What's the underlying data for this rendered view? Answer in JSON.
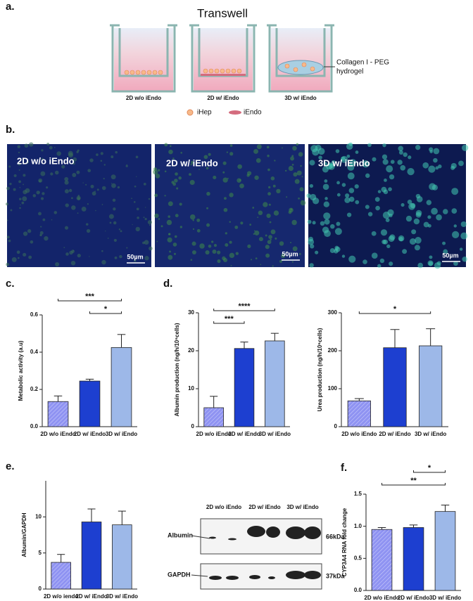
{
  "figure": {
    "panel_labels": [
      "a.",
      "b.",
      "c.",
      "d.",
      "e.",
      "f."
    ],
    "diagram": {
      "title": "Transwell",
      "wells": [
        "2D w/o iEndo",
        "2D w/ iEndo",
        "3D w/ iEndo"
      ],
      "hydrogel": [
        "Collagen I - PEG",
        "hydrogel"
      ],
      "legend": [
        "iHep",
        "iEndo"
      ]
    },
    "micrographs": [
      {
        "label": "2D w/o iEndo",
        "scale": "50µm"
      },
      {
        "label": "2D w/ iEndo",
        "scale": "50µm"
      },
      {
        "label": "3D w/ iEndo",
        "scale": "50µm"
      }
    ],
    "blot": {
      "columns": [
        "2D w/o iEndo",
        "2D w/ iEndo",
        "3D w/ iEndo"
      ],
      "rows": [
        "Albumin",
        "GAPDH"
      ],
      "sizes": [
        "66kDa",
        "37kDa"
      ]
    }
  },
  "chart_data": [
    {
      "type": "bar",
      "ylabel": "Metabolic activity (a.u)",
      "categories": [
        "2D w/o iEndo",
        "2D w/ iEndo",
        "3D w/ iEndo"
      ],
      "values": [
        0.135,
        0.245,
        0.425
      ],
      "errors": [
        0.03,
        0.01,
        0.07
      ],
      "colors": [
        "#8f93f2",
        "#1d3fd0",
        "#9db8e8"
      ],
      "hatched": [
        true,
        false,
        false
      ],
      "ylim": [
        0,
        0.6
      ],
      "yticks": [
        {
          "value": 0,
          "label": "0.0"
        },
        0.2,
        0.4,
        0.6
      ],
      "significance": [
        {
          "pair": [
            0,
            2
          ],
          "label": "***"
        },
        {
          "pair": [
            1,
            2
          ],
          "label": "*"
        }
      ]
    },
    {
      "type": "bar",
      "ylabel": "Albumin production (ng/h/10⁶cells)",
      "categories": [
        "2D w/o iEndo",
        "2D w/ iEndo",
        "3D w/ iEndo"
      ],
      "values": [
        5,
        20.6,
        22.6
      ],
      "errors": [
        3,
        1.7,
        2
      ],
      "colors": [
        "#8f93f2",
        "#1d3fd0",
        "#9db8e8"
      ],
      "hatched": [
        true,
        false,
        false
      ],
      "ylim": [
        0,
        30
      ],
      "yticks": [
        0,
        10,
        20,
        30
      ],
      "significance": [
        {
          "pair": [
            0,
            2
          ],
          "label": "****"
        },
        {
          "pair": [
            0,
            1
          ],
          "label": "***"
        }
      ]
    },
    {
      "type": "bar",
      "ylabel": "Urea production (ng/h/10⁶cells)",
      "categories": [
        "2D w/o iEndo",
        "2D w/ iEndo",
        "3D w/ iEndo"
      ],
      "values": [
        68,
        208,
        213
      ],
      "errors": [
        6,
        48,
        45
      ],
      "colors": [
        "#8f93f2",
        "#1d3fd0",
        "#9db8e8"
      ],
      "hatched": [
        true,
        false,
        false
      ],
      "ylim": [
        0,
        300
      ],
      "yticks": [
        0,
        100,
        200,
        300
      ],
      "significance": [
        {
          "pair": [
            0,
            2
          ],
          "label": "*"
        }
      ]
    },
    {
      "type": "bar",
      "ylabel": "Albumin/GAPDH",
      "categories": [
        "2D w/o iendo",
        "2D w/ iEndo",
        "3D w/ iEndo"
      ],
      "values": [
        3.7,
        9.3,
        8.9
      ],
      "errors": [
        1.1,
        1.8,
        1.9
      ],
      "colors": [
        "#8f93f2",
        "#1d3fd0",
        "#9db8e8"
      ],
      "hatched": [
        true,
        false,
        false
      ],
      "ylim": [
        0,
        15
      ],
      "yticks": [
        0,
        5,
        10
      ],
      "significance": []
    },
    {
      "type": "bar",
      "ylabel": "CYP3A4 RNA fold change",
      "categories": [
        "2D w/o iEndo",
        "2D w/ iEndo",
        "3D w/ iEndo"
      ],
      "values": [
        0.95,
        0.98,
        1.23
      ],
      "errors": [
        0.03,
        0.04,
        0.1
      ],
      "colors": [
        "#8f93f2",
        "#1d3fd0",
        "#9db8e8"
      ],
      "hatched": [
        true,
        false,
        false
      ],
      "ylim": [
        0,
        1.5
      ],
      "yticks": [
        {
          "value": 0,
          "label": "0.0"
        },
        {
          "value": 0.5,
          "label": "0.5"
        },
        {
          "value": 1,
          "label": "1.0"
        },
        {
          "value": 1.5,
          "label": "1.5"
        }
      ],
      "significance": [
        {
          "pair": [
            1,
            2
          ],
          "label": "*"
        },
        {
          "pair": [
            0,
            2
          ],
          "label": "**"
        }
      ]
    }
  ]
}
